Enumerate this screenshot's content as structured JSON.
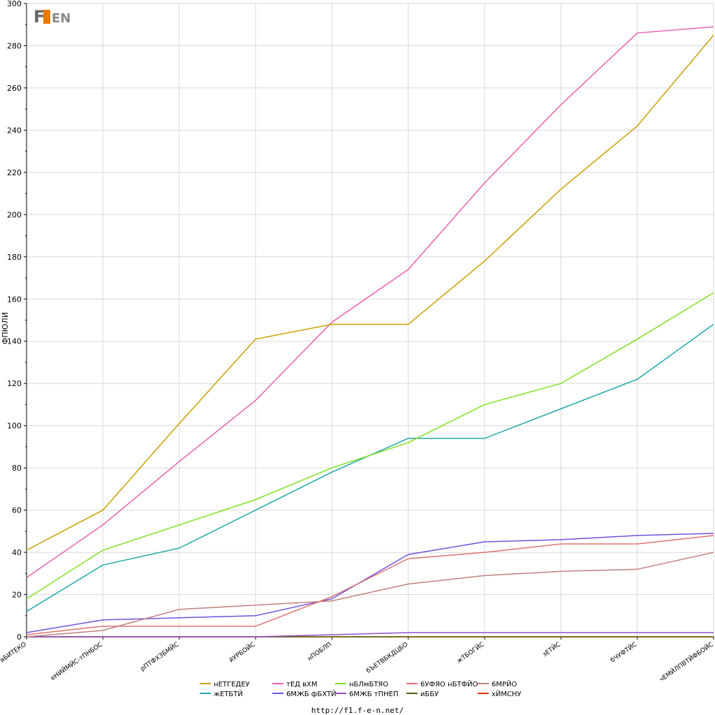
{
  "logo": {
    "text": "F1EN"
  },
  "source_url": "http://f1.f-e-n.net/",
  "chart_data": {
    "type": "line",
    "ylabel": "ФПЮЛИ",
    "ylim": [
      0,
      300
    ],
    "yticks": [
      0,
      20,
      40,
      60,
      80,
      100,
      120,
      140,
      160,
      180,
      200,
      220,
      240,
      260,
      280,
      300
    ],
    "grid": true,
    "legend_position": "bottom",
    "categories": [
      "вБИТЕКО",
      "еНИЙМЙС-тПНБОС",
      "рПТФХЗБМЙС",
      "йУРБОЙС",
      "нПОБЛП",
      "бЪЕТВБКДЦБО",
      "жТБОГЙС",
      "зЕТЙС",
      "бЧУФТЙС",
      "чЕМЙЛПВТЙФБОЙС"
    ],
    "series": [
      {
        "name": "нЕТГЕДЕУ",
        "color": "#c8a000",
        "values": [
          41,
          60,
          101,
          141,
          148,
          148,
          178,
          212,
          242,
          285
        ]
      },
      {
        "name": "тЕД вХМ",
        "color": "#e860b0",
        "values": [
          28,
          53,
          83,
          112,
          149,
          174,
          215,
          252,
          286,
          289
        ]
      },
      {
        "name": "нБЛмБТЯО",
        "color": "#80e020",
        "values": [
          18,
          41,
          53,
          65,
          80,
          92,
          110,
          120,
          141,
          163
        ]
      },
      {
        "name": "6УФЯО нБТФЙО",
        "color": "#e07070",
        "values": [
          1,
          5,
          5,
          5,
          19,
          37,
          40,
          44,
          44,
          48
        ]
      },
      {
        "name": "6МРЙО",
        "color": "#c08080",
        "values": [
          0,
          3,
          13,
          15,
          17,
          25,
          29,
          31,
          32,
          40
        ]
      },
      {
        "name": "жЕТБТЙ",
        "color": "#20a8a8",
        "values": [
          12,
          34,
          42,
          60,
          78,
          94,
          94,
          108,
          122,
          148
        ]
      },
      {
        "name": "6МЖБ фБХТЙ",
        "color": "#7050e0",
        "values": [
          2,
          8,
          9,
          10,
          18,
          39,
          45,
          46,
          48,
          49
        ]
      },
      {
        "name": "6МЖБ тПНЕП",
        "color": "#9050c8",
        "values": [
          0,
          0,
          0,
          0,
          1,
          2,
          2,
          2,
          2,
          2
        ]
      },
      {
        "name": "иББУ",
        "color": "#506000",
        "values": [
          0,
          0,
          0,
          0,
          0,
          0,
          0,
          0,
          0,
          0
        ]
      },
      {
        "name": "хЙМСНУ",
        "color": "#e03000",
        "values": [
          0,
          0,
          0,
          0,
          0,
          0,
          0,
          0,
          0,
          0
        ]
      }
    ]
  }
}
